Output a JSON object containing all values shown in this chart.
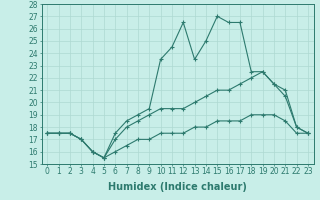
{
  "xlabel": "Humidex (Indice chaleur)",
  "x": [
    0,
    1,
    2,
    3,
    4,
    5,
    6,
    7,
    8,
    9,
    10,
    11,
    12,
    13,
    14,
    15,
    16,
    17,
    18,
    19,
    20,
    21,
    22,
    23
  ],
  "line1": [
    17.5,
    17.5,
    17.5,
    17,
    16,
    15.5,
    17.5,
    18.5,
    19,
    19.5,
    23.5,
    24.5,
    26.5,
    23.5,
    25,
    27,
    26.5,
    26.5,
    22.5,
    22.5,
    21.5,
    20.5,
    18,
    17.5
  ],
  "line2": [
    17.5,
    17.5,
    17.5,
    17,
    16,
    15.5,
    17,
    18,
    18.5,
    19,
    19.5,
    19.5,
    19.5,
    20,
    20.5,
    21,
    21,
    21.5,
    22,
    22.5,
    21.5,
    21,
    18,
    17.5
  ],
  "line3": [
    17.5,
    17.5,
    17.5,
    17,
    16,
    15.5,
    16,
    16.5,
    17,
    17,
    17.5,
    17.5,
    17.5,
    18,
    18,
    18.5,
    18.5,
    18.5,
    19,
    19,
    19,
    18.5,
    17.5,
    17.5
  ],
  "color": "#2d7a6e",
  "bg_color": "#c8eee8",
  "grid_color": "#aed9d2",
  "ylim": [
    15,
    28
  ],
  "yticks": [
    15,
    16,
    17,
    18,
    19,
    20,
    21,
    22,
    23,
    24,
    25,
    26,
    27,
    28
  ],
  "xticks": [
    0,
    1,
    2,
    3,
    4,
    5,
    6,
    7,
    8,
    9,
    10,
    11,
    12,
    13,
    14,
    15,
    16,
    17,
    18,
    19,
    20,
    21,
    22,
    23
  ],
  "marker": "+",
  "linewidth": 0.8,
  "markersize": 3.5,
  "tick_fontsize": 5.5,
  "xlabel_fontsize": 7
}
